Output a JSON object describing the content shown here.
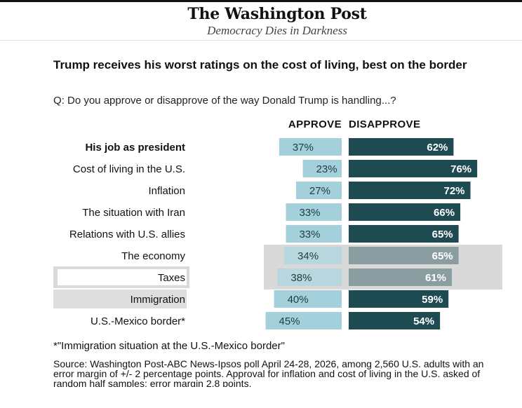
{
  "masthead": {
    "logo": "The Washington Post",
    "tagline": "Democracy Dies in Darkness"
  },
  "chart_data": {
    "type": "bar",
    "title": "Trump receives his worst ratings on the cost of living, best on the border",
    "question": "Q: Do you approve or disapprove of the way Donald Trump is handling...?",
    "categories": [
      "His job as president",
      "Cost of living in the U.S.",
      "Inflation",
      "The situation with Iran",
      "Relations with U.S. allies",
      "The economy",
      "Taxes",
      "Immigration",
      "U.S.-Mexico border*"
    ],
    "highlighted_category": "His job as president",
    "series": [
      {
        "name": "APPROVE",
        "values": [
          37,
          23,
          27,
          33,
          33,
          34,
          38,
          40,
          45
        ],
        "color": "#a3d0da"
      },
      {
        "name": "DISAPPROVE",
        "values": [
          62,
          76,
          72,
          66,
          65,
          65,
          61,
          59,
          54
        ],
        "color": "#1e4b52"
      }
    ],
    "value_suffix": "%",
    "footnote": "*\"Immigration situation at the U.S.-Mexico border\"",
    "source": "Source: Washington Post-ABC News-Ipsos poll April 24-28, 2026, among 2,560 U.S. adults with an error margin of +/- 2 percentage points. Approval for inflation and cost of living in the U.S. asked of random half samples; error margin 2.8 points.",
    "grid": false
  }
}
